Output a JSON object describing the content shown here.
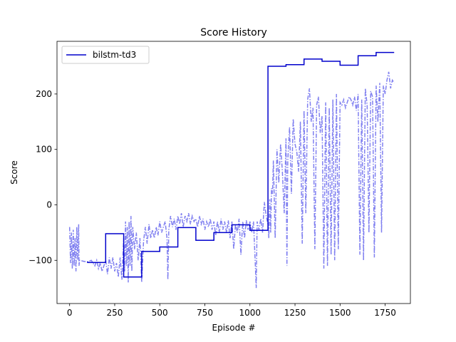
{
  "chart_data": {
    "type": "line",
    "title": "Score History",
    "xlabel": "Episode #",
    "ylabel": "Score",
    "xlim": [
      -70,
      1890
    ],
    "ylim": [
      -178,
      295
    ],
    "x_ticks": [
      0,
      250,
      500,
      750,
      1000,
      1250,
      1500,
      1750
    ],
    "x_tick_labels": [
      "0",
      "250",
      "500",
      "750",
      "1000",
      "1250",
      "1500",
      "1750"
    ],
    "y_ticks": [
      -100,
      0,
      100,
      200
    ],
    "y_tick_labels": [
      "−100",
      "0",
      "100",
      "200"
    ],
    "grid": false,
    "legend_position": "top-left",
    "colors": {
      "best_line": "#0000cc",
      "episode_line": "#8080f0",
      "axes": "#000000"
    },
    "series": [
      {
        "name": "bilstm-td3",
        "style": "solid-step",
        "points": [
          [
            100,
            -102
          ],
          [
            100,
            -104
          ],
          [
            200,
            -104
          ],
          [
            200,
            -52
          ],
          [
            300,
            -52
          ],
          [
            300,
            -130
          ],
          [
            400,
            -130
          ],
          [
            400,
            -84
          ],
          [
            500,
            -84
          ],
          [
            500,
            -76
          ],
          [
            600,
            -76
          ],
          [
            600,
            -41
          ],
          [
            700,
            -41
          ],
          [
            700,
            -64
          ],
          [
            800,
            -64
          ],
          [
            800,
            -50
          ],
          [
            900,
            -50
          ],
          [
            900,
            -36
          ],
          [
            1000,
            -36
          ],
          [
            1000,
            -46
          ],
          [
            1100,
            -46
          ],
          [
            1100,
            250
          ],
          [
            1200,
            250
          ],
          [
            1200,
            253
          ],
          [
            1300,
            253
          ],
          [
            1300,
            263
          ],
          [
            1400,
            263
          ],
          [
            1400,
            259
          ],
          [
            1500,
            259
          ],
          [
            1500,
            252
          ],
          [
            1600,
            252
          ],
          [
            1600,
            269
          ],
          [
            1700,
            269
          ],
          [
            1700,
            275
          ],
          [
            1800,
            275
          ]
        ]
      },
      {
        "style": "dash-dot",
        "points": [
          [
            0,
            -40
          ],
          [
            5,
            -105
          ],
          [
            10,
            -50
          ],
          [
            15,
            -115
          ],
          [
            20,
            -45
          ],
          [
            25,
            -110
          ],
          [
            30,
            -60
          ],
          [
            35,
            -120
          ],
          [
            40,
            -40
          ],
          [
            45,
            -100
          ],
          [
            50,
            -35
          ],
          [
            52,
            -110
          ],
          [
            55,
            -100
          ],
          [
            80,
            -102
          ],
          [
            100,
            -103
          ],
          [
            120,
            -100
          ],
          [
            140,
            -110
          ],
          [
            150,
            -100
          ],
          [
            160,
            -115
          ],
          [
            170,
            -105
          ],
          [
            180,
            -120
          ],
          [
            190,
            -110
          ],
          [
            200,
            -100
          ],
          [
            210,
            -125
          ],
          [
            220,
            -95
          ],
          [
            230,
            -115
          ],
          [
            240,
            -95
          ],
          [
            250,
            -120
          ],
          [
            260,
            -105
          ],
          [
            270,
            -130
          ],
          [
            280,
            -95
          ],
          [
            290,
            -135
          ],
          [
            300,
            -60
          ],
          [
            305,
            -120
          ],
          [
            310,
            -30
          ],
          [
            315,
            -110
          ],
          [
            320,
            -40
          ],
          [
            325,
            -140
          ],
          [
            330,
            -30
          ],
          [
            335,
            -110
          ],
          [
            340,
            -20
          ],
          [
            345,
            -120
          ],
          [
            350,
            -40
          ],
          [
            360,
            -80
          ],
          [
            370,
            -50
          ],
          [
            380,
            -100
          ],
          [
            390,
            -60
          ],
          [
            400,
            -140
          ],
          [
            410,
            -65
          ],
          [
            420,
            -40
          ],
          [
            430,
            -70
          ],
          [
            440,
            -35
          ],
          [
            450,
            -60
          ],
          [
            460,
            -45
          ],
          [
            470,
            -60
          ],
          [
            480,
            -40
          ],
          [
            490,
            -55
          ],
          [
            500,
            -30
          ],
          [
            510,
            -50
          ],
          [
            520,
            -40
          ],
          [
            530,
            -30
          ],
          [
            540,
            -60
          ],
          [
            545,
            -135
          ],
          [
            550,
            -45
          ],
          [
            560,
            -20
          ],
          [
            570,
            -40
          ],
          [
            580,
            -25
          ],
          [
            590,
            -45
          ],
          [
            600,
            -20
          ],
          [
            610,
            -35
          ],
          [
            620,
            -15
          ],
          [
            630,
            -40
          ],
          [
            640,
            -20
          ],
          [
            650,
            -30
          ],
          [
            660,
            -15
          ],
          [
            670,
            -35
          ],
          [
            680,
            -20
          ],
          [
            690,
            -30
          ],
          [
            700,
            -25
          ],
          [
            710,
            -40
          ],
          [
            720,
            -20
          ],
          [
            730,
            -35
          ],
          [
            740,
            -25
          ],
          [
            750,
            -45
          ],
          [
            760,
            -30
          ],
          [
            770,
            -40
          ],
          [
            780,
            -25
          ],
          [
            790,
            -45
          ],
          [
            800,
            -30
          ],
          [
            810,
            -55
          ],
          [
            820,
            -30
          ],
          [
            830,
            -50
          ],
          [
            840,
            -25
          ],
          [
            850,
            -45
          ],
          [
            860,
            -30
          ],
          [
            870,
            -50
          ],
          [
            880,
            -28
          ],
          [
            890,
            -60
          ],
          [
            900,
            -30
          ],
          [
            910,
            -80
          ],
          [
            920,
            -35
          ],
          [
            930,
            -50
          ],
          [
            940,
            -25
          ],
          [
            950,
            -90
          ],
          [
            960,
            -30
          ],
          [
            970,
            -60
          ],
          [
            980,
            -28
          ],
          [
            990,
            -45
          ],
          [
            1000,
            -30
          ],
          [
            1010,
            -50
          ],
          [
            1020,
            -30
          ],
          [
            1030,
            -110
          ],
          [
            1035,
            -150
          ],
          [
            1040,
            -30
          ],
          [
            1050,
            -45
          ],
          [
            1060,
            -25
          ],
          [
            1070,
            -50
          ],
          [
            1080,
            5
          ],
          [
            1090,
            -20
          ],
          [
            1100,
            -35
          ],
          [
            1105,
            -60
          ],
          [
            1110,
            10
          ],
          [
            1115,
            -50
          ],
          [
            1120,
            30
          ],
          [
            1125,
            20
          ],
          [
            1130,
            80
          ],
          [
            1140,
            -60
          ],
          [
            1150,
            100
          ],
          [
            1160,
            40
          ],
          [
            1170,
            110
          ],
          [
            1180,
            60
          ],
          [
            1190,
            -15
          ],
          [
            1200,
            120
          ],
          [
            1205,
            -110
          ],
          [
            1210,
            80
          ],
          [
            1220,
            140
          ],
          [
            1230,
            20
          ],
          [
            1240,
            155
          ],
          [
            1250,
            110
          ],
          [
            1260,
            95
          ],
          [
            1270,
            60
          ],
          [
            1280,
            150
          ],
          [
            1290,
            -70
          ],
          [
            1300,
            170
          ],
          [
            1310,
            -15
          ],
          [
            1320,
            190
          ],
          [
            1330,
            210
          ],
          [
            1340,
            150
          ],
          [
            1350,
            175
          ],
          [
            1360,
            -80
          ],
          [
            1370,
            180
          ],
          [
            1380,
            195
          ],
          [
            1390,
            130
          ],
          [
            1400,
            160
          ],
          [
            1410,
            -115
          ],
          [
            1420,
            185
          ],
          [
            1430,
            -110
          ],
          [
            1440,
            175
          ],
          [
            1450,
            -90
          ],
          [
            1460,
            190
          ],
          [
            1470,
            -100
          ],
          [
            1480,
            200
          ],
          [
            1490,
            -80
          ],
          [
            1500,
            185
          ],
          [
            1510,
            180
          ],
          [
            1520,
            190
          ],
          [
            1530,
            175
          ],
          [
            1540,
            185
          ],
          [
            1550,
            195
          ],
          [
            1560,
            190
          ],
          [
            1570,
            180
          ],
          [
            1580,
            195
          ],
          [
            1590,
            170
          ],
          [
            1600,
            200
          ],
          [
            1610,
            -90
          ],
          [
            1620,
            190
          ],
          [
            1630,
            -100
          ],
          [
            1640,
            210
          ],
          [
            1650,
            180
          ],
          [
            1660,
            -50
          ],
          [
            1670,
            205
          ],
          [
            1680,
            195
          ],
          [
            1690,
            -95
          ],
          [
            1700,
            215
          ],
          [
            1710,
            150
          ],
          [
            1720,
            220
          ],
          [
            1730,
            -50
          ],
          [
            1740,
            215
          ],
          [
            1750,
            200
          ],
          [
            1760,
            225
          ],
          [
            1770,
            240
          ],
          [
            1780,
            210
          ],
          [
            1790,
            225
          ],
          [
            1800,
            220
          ]
        ]
      }
    ]
  }
}
